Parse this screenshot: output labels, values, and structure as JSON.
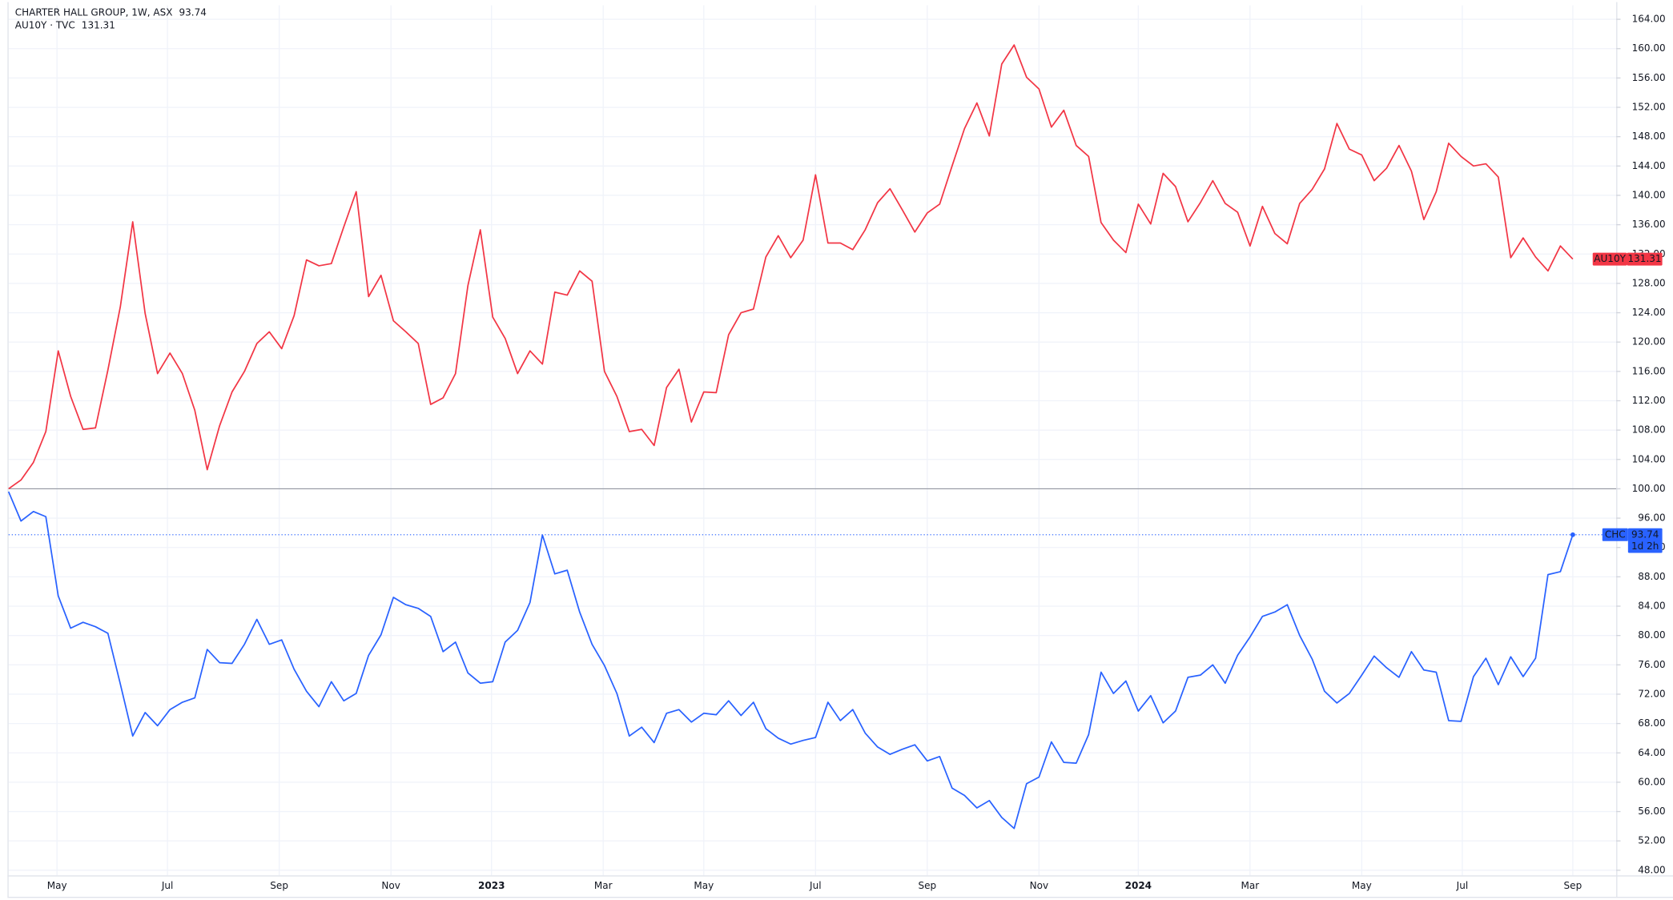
{
  "chart_data": {
    "type": "line",
    "baseline": 100,
    "countdown": "1d 2h",
    "xlim": [
      0,
      129.5
    ],
    "xticks": [
      {
        "value": 3.9,
        "label": "May"
      },
      {
        "value": 12.8,
        "label": "Jul"
      },
      {
        "value": 21.8,
        "label": "Sep"
      },
      {
        "value": 30.8,
        "label": "Nov"
      },
      {
        "value": 38.9,
        "label": "2023"
      },
      {
        "value": 47.9,
        "label": "Mar"
      },
      {
        "value": 56,
        "label": "May"
      },
      {
        "value": 65,
        "label": "Jul"
      },
      {
        "value": 74,
        "label": "Sep"
      },
      {
        "value": 83,
        "label": "Nov"
      },
      {
        "value": 91,
        "label": "2024"
      },
      {
        "value": 100,
        "label": "Mar"
      },
      {
        "value": 109,
        "label": "May"
      },
      {
        "value": 117.1,
        "label": "Jul"
      },
      {
        "value": 126,
        "label": "Sep"
      }
    ],
    "ylim": [
      47.3,
      165.9
    ],
    "yticks": [
      {
        "value": 48,
        "label": "48.00"
      },
      {
        "value": 52,
        "label": "52.00"
      },
      {
        "value": 56,
        "label": "56.00"
      },
      {
        "value": 60,
        "label": "60.00"
      },
      {
        "value": 64,
        "label": "64.00"
      },
      {
        "value": 68,
        "label": "68.00"
      },
      {
        "value": 72,
        "label": "72.00"
      },
      {
        "value": 76,
        "label": "76.00"
      },
      {
        "value": 80,
        "label": "80.00"
      },
      {
        "value": 84,
        "label": "84.00"
      },
      {
        "value": 88,
        "label": "88.00"
      },
      {
        "value": 92,
        "label": "92.00"
      },
      {
        "value": 96,
        "label": "96.00"
      },
      {
        "value": 100,
        "label": "100.00"
      },
      {
        "value": 104,
        "label": "104.00"
      },
      {
        "value": 108,
        "label": "108.00"
      },
      {
        "value": 112,
        "label": "112.00"
      },
      {
        "value": 116,
        "label": "116.00"
      },
      {
        "value": 120,
        "label": "120.00"
      },
      {
        "value": 124,
        "label": "124.00"
      },
      {
        "value": 128,
        "label": "128.00"
      },
      {
        "value": 132,
        "label": "132.00"
      },
      {
        "value": 136,
        "label": "136.00"
      },
      {
        "value": 140,
        "label": "140.00"
      },
      {
        "value": 144,
        "label": "144.00"
      },
      {
        "value": 148,
        "label": "148.00"
      },
      {
        "value": 152,
        "label": "152.00"
      },
      {
        "value": 156,
        "label": "156.00"
      },
      {
        "value": 160,
        "label": "160.00"
      },
      {
        "value": 164,
        "label": "164.00"
      }
    ],
    "grid": true,
    "series": [
      {
        "name": "CHARTER HALL GROUP, 1W, ASX",
        "symbol": "CHC",
        "color": "#2962ff",
        "values": [
          99.6,
          95.6,
          96.9,
          96.2,
          85.4,
          81.0,
          81.8,
          81.2,
          80.3,
          73.4,
          66.3,
          69.5,
          67.7,
          69.9,
          70.9,
          71.5,
          78.1,
          76.3,
          76.2,
          78.8,
          82.2,
          78.8,
          79.4,
          75.4,
          72.4,
          70.3,
          73.7,
          71.1,
          72.1,
          77.3,
          80.1,
          85.2,
          84.2,
          83.7,
          82.6,
          77.8,
          79.1,
          74.9,
          73.5,
          73.7,
          79.1,
          80.7,
          84.5,
          93.7,
          88.4,
          88.9,
          83.2,
          78.8,
          75.9,
          72.1,
          66.3,
          67.5,
          65.4,
          69.4,
          69.9,
          68.2,
          69.4,
          69.2,
          71.1,
          69.1,
          70.9,
          67.3,
          66.0,
          65.2,
          65.7,
          66.1,
          70.9,
          68.4,
          69.9,
          66.7,
          64.8,
          63.8,
          64.5,
          65.1,
          62.9,
          63.5,
          59.2,
          58.2,
          56.5,
          57.5,
          55.2,
          53.7,
          59.8,
          60.7,
          65.5,
          62.7,
          62.6,
          66.5,
          75.0,
          72.1,
          73.8,
          69.7,
          71.8,
          68.1,
          69.7,
          74.3,
          74.6,
          76.0,
          73.5,
          77.3,
          79.8,
          82.6,
          83.2,
          84.2,
          80.0,
          76.8,
          72.4,
          70.8,
          72.1,
          74.6,
          77.2,
          75.6,
          74.3,
          77.8,
          75.3,
          75.0,
          68.4,
          68.3,
          74.4,
          76.9,
          73.3,
          77.1,
          74.4,
          76.9,
          88.3,
          88.7,
          93.74
        ]
      },
      {
        "name": "AU10Y · TVC",
        "symbol": "AU10Y",
        "color": "#f23645",
        "values": [
          100.0,
          101.2,
          103.6,
          107.8,
          118.8,
          112.6,
          108.1,
          108.3,
          116.2,
          124.8,
          136.4,
          123.9,
          115.7,
          118.5,
          115.7,
          110.7,
          102.6,
          108.6,
          113.2,
          116.0,
          119.8,
          121.4,
          119.1,
          123.6,
          131.2,
          130.4,
          130.7,
          135.7,
          140.5,
          126.2,
          129.1,
          122.9,
          121.4,
          119.8,
          111.5,
          112.4,
          115.7,
          127.7,
          135.3,
          123.4,
          120.5,
          115.7,
          118.8,
          117.0,
          126.8,
          126.4,
          129.7,
          128.3,
          116.0,
          112.6,
          107.8,
          108.1,
          105.9,
          113.8,
          116.3,
          109.1,
          113.2,
          113.1,
          121.0,
          124.0,
          124.5,
          131.6,
          134.5,
          131.5,
          133.9,
          142.8,
          133.5,
          133.5,
          132.6,
          135.3,
          139.0,
          140.9,
          138.0,
          135.0,
          137.6,
          138.8,
          144.0,
          149.1,
          152.6,
          148.1,
          157.9,
          160.5,
          156.1,
          154.5,
          149.3,
          151.6,
          146.8,
          145.3,
          136.3,
          133.9,
          132.2,
          138.8,
          136.1,
          143.0,
          141.2,
          136.4,
          139.0,
          142.0,
          138.9,
          137.7,
          133.1,
          138.5,
          134.8,
          133.4,
          138.9,
          140.8,
          143.6,
          149.8,
          146.3,
          145.5,
          142.0,
          143.7,
          146.8,
          143.3,
          136.7,
          140.5,
          147.1,
          145.3,
          144.0,
          144.3,
          142.5,
          131.5,
          134.2,
          131.6,
          129.7,
          133.1,
          131.31
        ]
      }
    ]
  }
}
